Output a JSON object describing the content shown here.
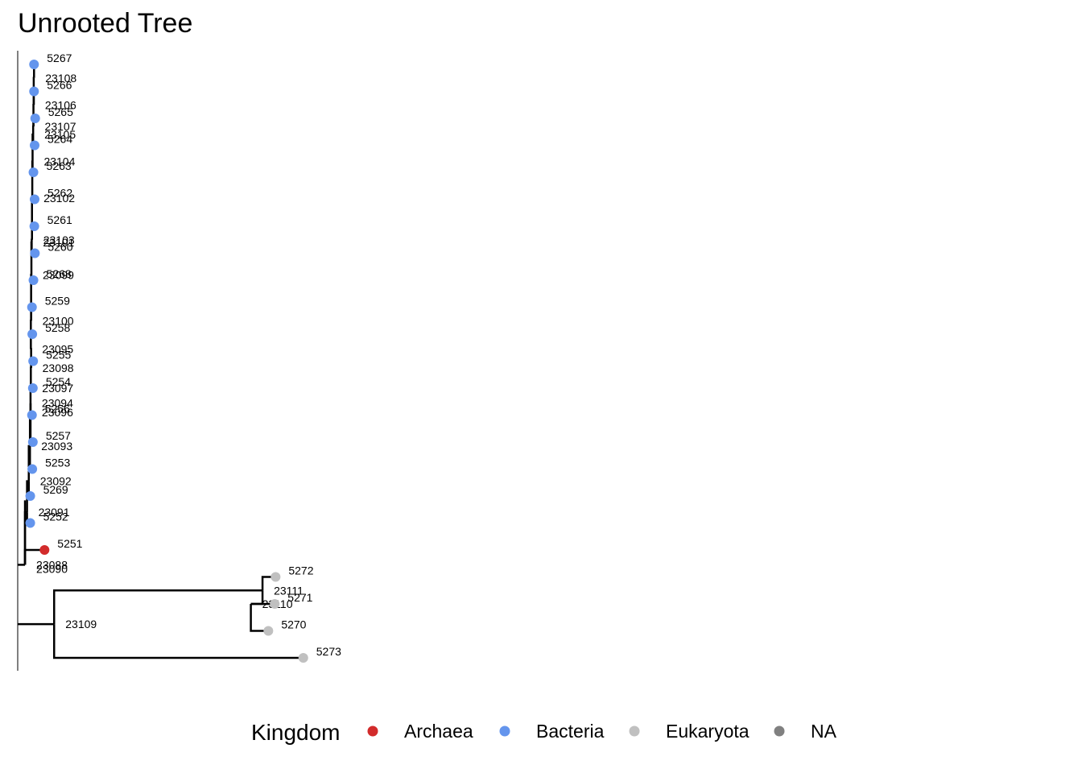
{
  "title": "Unrooted Tree",
  "tree_data": {
    "type": "phylogenetic-tree",
    "layout": "rectangular",
    "tips": [
      {
        "id": "5267",
        "kingdom": "Bacteria",
        "row": 1,
        "depth": 0.056
      },
      {
        "id": "5266",
        "kingdom": "Bacteria",
        "row": 2,
        "depth": 0.056
      },
      {
        "id": "5265",
        "kingdom": "Bacteria",
        "row": 3,
        "depth": 0.06
      },
      {
        "id": "5264",
        "kingdom": "Bacteria",
        "row": 4,
        "depth": 0.058
      },
      {
        "id": "5263",
        "kingdom": "Bacteria",
        "row": 5,
        "depth": 0.054
      },
      {
        "id": "5262",
        "kingdom": "Bacteria",
        "row": 6,
        "depth": 0.058
      },
      {
        "id": "5261",
        "kingdom": "Bacteria",
        "row": 7,
        "depth": 0.057
      },
      {
        "id": "5260",
        "kingdom": "Bacteria",
        "row": 8,
        "depth": 0.059
      },
      {
        "id": "5268",
        "kingdom": "Bacteria",
        "row": 9,
        "depth": 0.054
      },
      {
        "id": "5259",
        "kingdom": "Bacteria",
        "row": 10,
        "depth": 0.049
      },
      {
        "id": "5258",
        "kingdom": "Bacteria",
        "row": 11,
        "depth": 0.05
      },
      {
        "id": "5255",
        "kingdom": "Bacteria",
        "row": 12,
        "depth": 0.053
      },
      {
        "id": "5254",
        "kingdom": "Bacteria",
        "row": 13,
        "depth": 0.052
      },
      {
        "id": "5256",
        "kingdom": "Bacteria",
        "row": 14,
        "depth": 0.049
      },
      {
        "id": "5257",
        "kingdom": "Bacteria",
        "row": 15,
        "depth": 0.052
      },
      {
        "id": "5253",
        "kingdom": "Bacteria",
        "row": 16,
        "depth": 0.05
      },
      {
        "id": "5269",
        "kingdom": "Bacteria",
        "row": 17,
        "depth": 0.043
      },
      {
        "id": "5252",
        "kingdom": "Bacteria",
        "row": 18,
        "depth": 0.043
      },
      {
        "id": "5251",
        "kingdom": "Archaea",
        "row": 19,
        "depth": 0.092
      },
      {
        "id": "5272",
        "kingdom": "Eukaryota",
        "row": 20,
        "depth": 0.885
      },
      {
        "id": "5271",
        "kingdom": "Eukaryota",
        "row": 21,
        "depth": 0.882
      },
      {
        "id": "5270",
        "kingdom": "Eukaryota",
        "row": 22,
        "depth": 0.86
      },
      {
        "id": "5273",
        "kingdom": "Eukaryota",
        "row": 23,
        "depth": 0.98
      }
    ],
    "internal_nodes": [
      {
        "id": "23108",
        "row": 1.5,
        "depth": 0.056
      },
      {
        "id": "23106",
        "row": 2.5,
        "depth": 0.055
      },
      {
        "id": "23107",
        "row": 3.3,
        "depth": 0.054
      },
      {
        "id": "23105",
        "row": 3.6,
        "depth": 0.053
      },
      {
        "id": "23104",
        "row": 4.6,
        "depth": 0.051
      },
      {
        "id": "23102",
        "row": 5.95,
        "depth": 0.05
      },
      {
        "id": "23103",
        "row": 7.5,
        "depth": 0.049
      },
      {
        "id": "23101",
        "row": 7.6,
        "depth": 0.048
      },
      {
        "id": "23099",
        "row": 8.8,
        "depth": 0.047
      },
      {
        "id": "23100",
        "row": 10.5,
        "depth": 0.046
      },
      {
        "id": "23095",
        "row": 11.55,
        "depth": 0.045
      },
      {
        "id": "23098",
        "row": 12.25,
        "depth": 0.046
      },
      {
        "id": "23097",
        "row": 13.0,
        "depth": 0.045
      },
      {
        "id": "23094",
        "row": 13.55,
        "depth": 0.044
      },
      {
        "id": "23096",
        "row": 13.9,
        "depth": 0.044
      },
      {
        "id": "23093",
        "row": 15.15,
        "depth": 0.042
      },
      {
        "id": "23092",
        "row": 16.45,
        "depth": 0.038
      },
      {
        "id": "23091",
        "row": 17.6,
        "depth": 0.032
      },
      {
        "id": "23088",
        "row": 19.55,
        "depth": 0.025
      },
      {
        "id": "23090",
        "row": 19.7,
        "depth": 0.025
      },
      {
        "id": "23111",
        "row": 20.5,
        "depth": 0.84
      },
      {
        "id": "23110",
        "row": 21.0,
        "depth": 0.8
      },
      {
        "id": "23109",
        "row": 21.75,
        "depth": 0.125
      }
    ],
    "kingdom_colors": {
      "Archaea": "#D22B2B",
      "Bacteria": "#6495ED",
      "Eukaryota": "#C0C0C0",
      "NA": "#808080"
    }
  },
  "legend": {
    "title": "Kingdom",
    "items": [
      {
        "label": "Archaea",
        "color": "#D22B2B"
      },
      {
        "label": "Bacteria",
        "color": "#6495ED"
      },
      {
        "label": "Eukaryota",
        "color": "#C0C0C0"
      },
      {
        "label": "NA",
        "color": "#808080"
      }
    ]
  }
}
